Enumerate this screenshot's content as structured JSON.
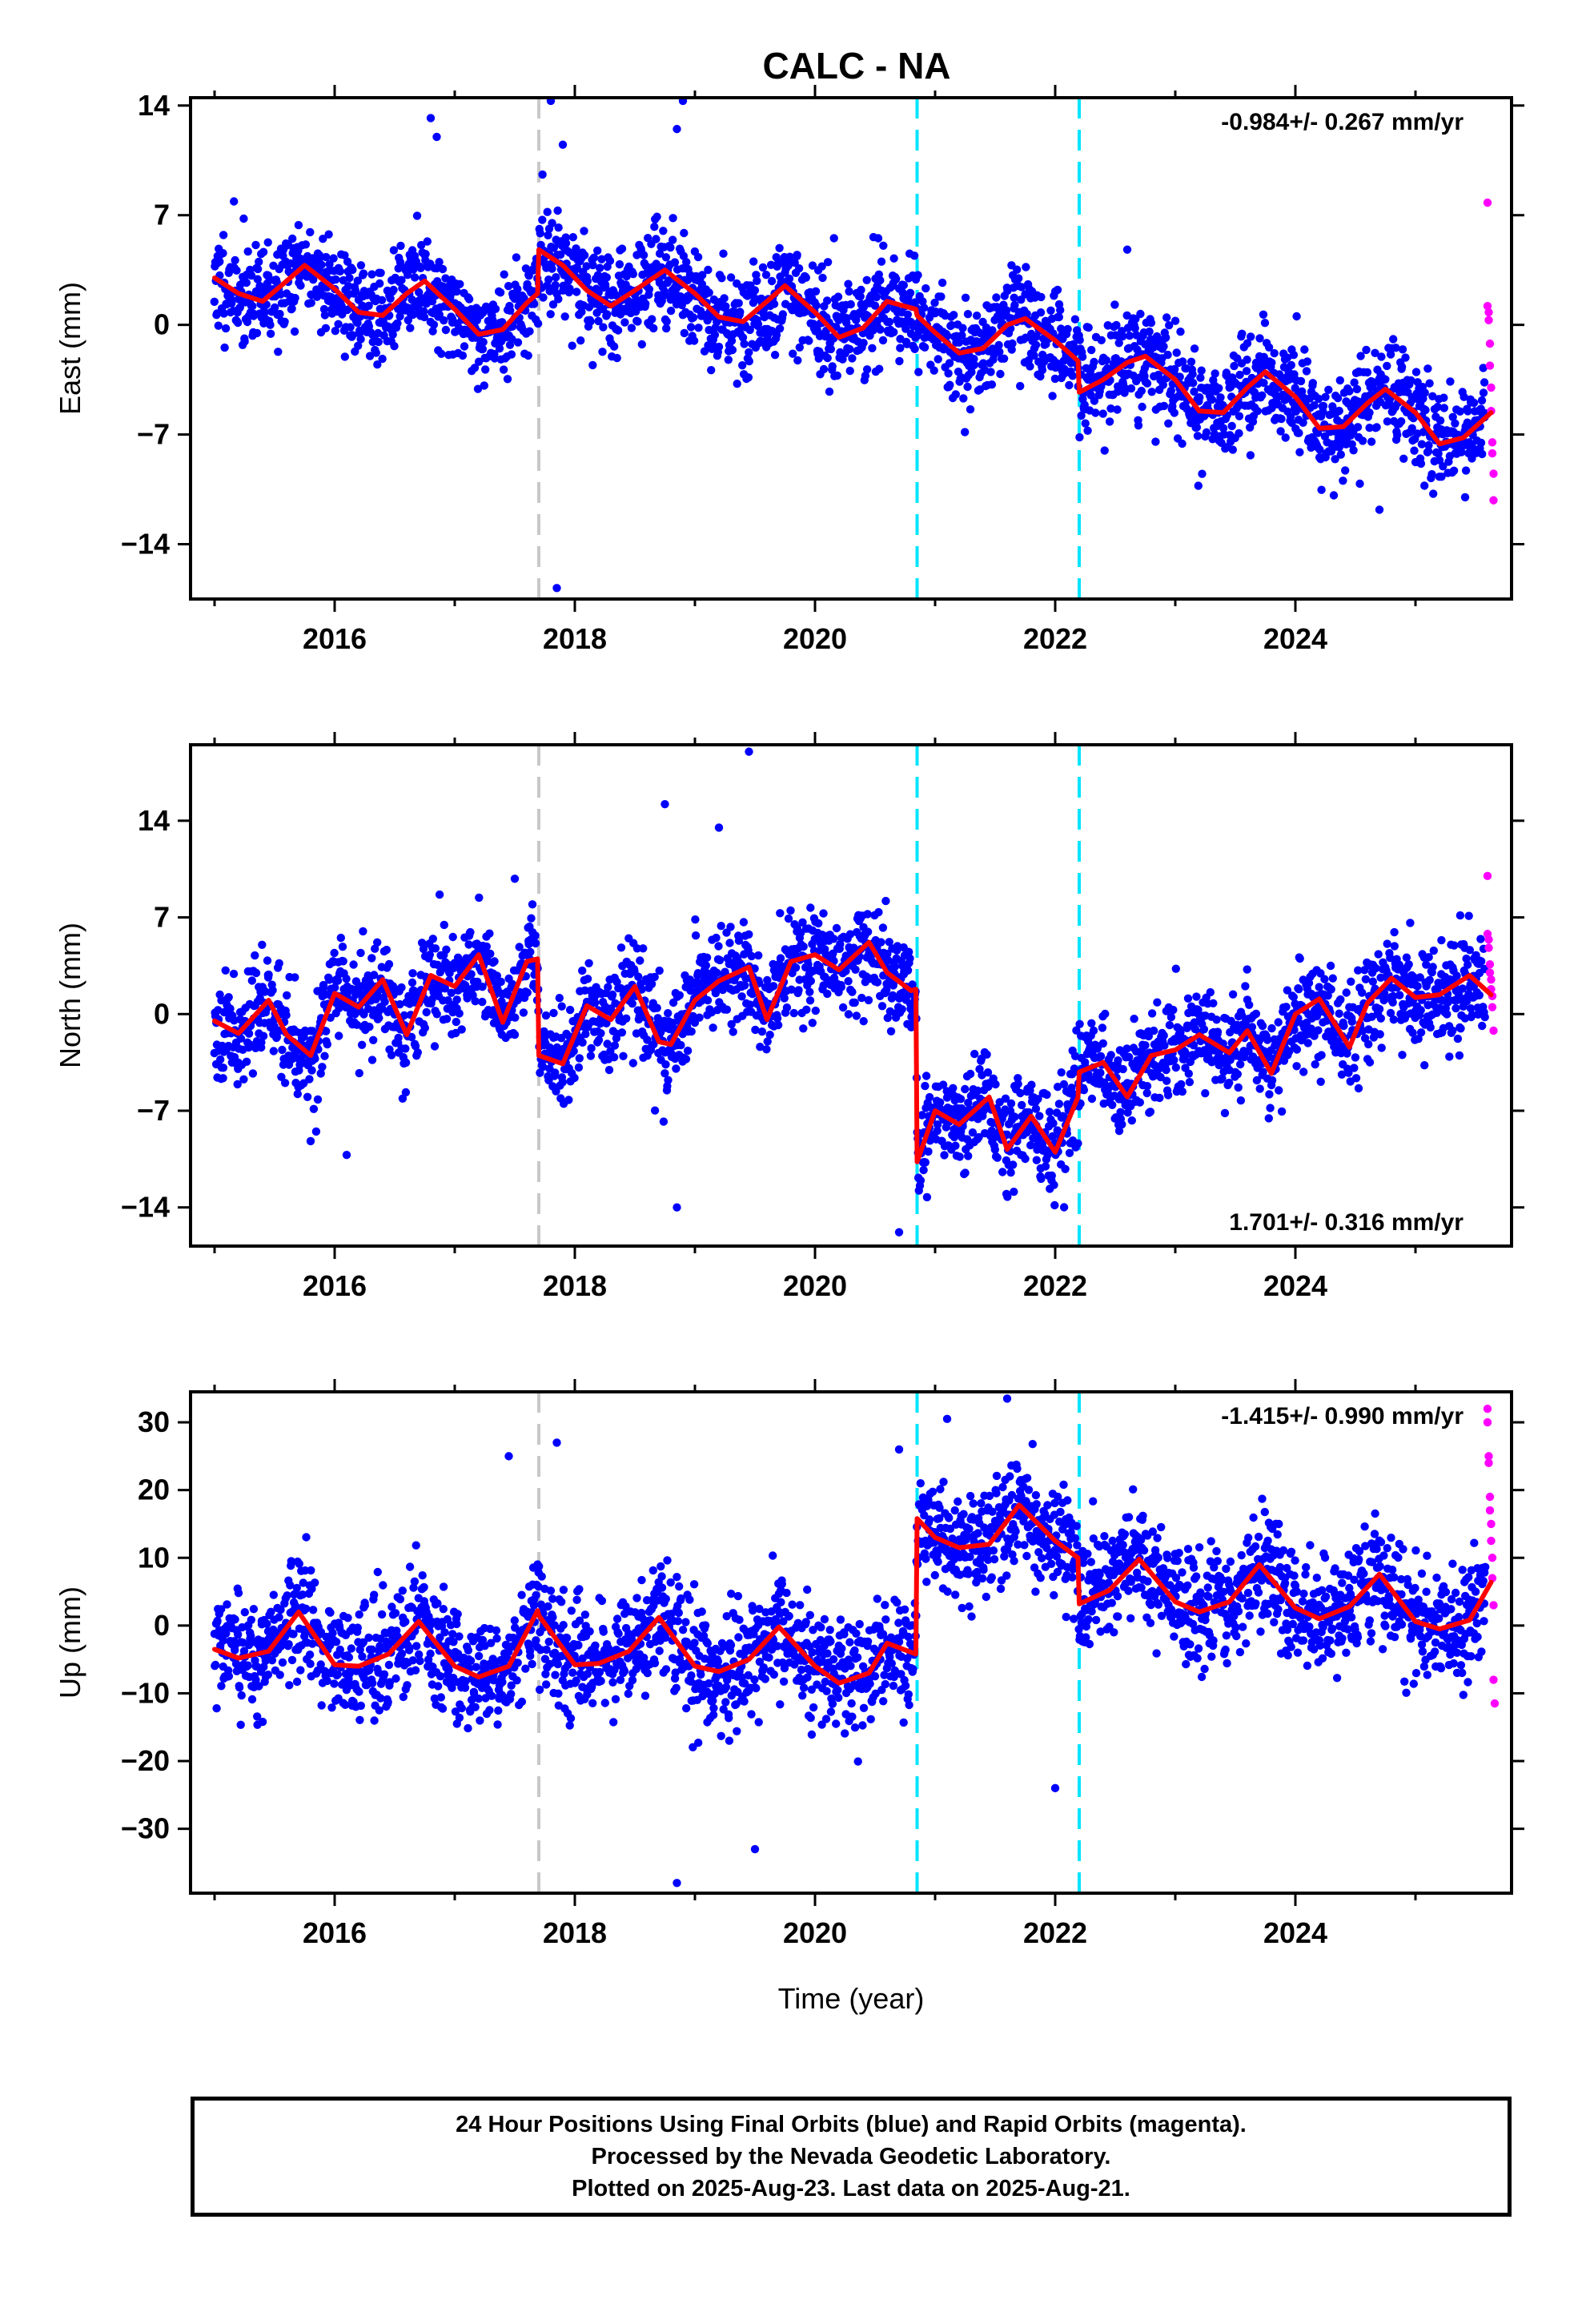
{
  "chart_data": {
    "title": "CALC - NA",
    "type": "scatter",
    "xlabel": "Time (year)",
    "xlim": [
      2014.8,
      2025.8
    ],
    "xticks": [
      2016,
      2018,
      2020,
      2022,
      2024
    ],
    "colors": {
      "final": "#0000ff",
      "rapid": "#ff00ff",
      "model": "#ff0000",
      "step_equipment": "#c8c8c8",
      "step_other": "#00e5ff"
    },
    "vertical_lines": [
      {
        "x": 2017.7,
        "color": "gray"
      },
      {
        "x": 2020.85,
        "color": "cyan"
      },
      {
        "x": 2022.2,
        "color": "cyan"
      }
    ],
    "panels": [
      {
        "ylabel": "East (mm)",
        "ylim": [
          -17.5,
          14.5
        ],
        "yticks": [
          14,
          7,
          0,
          -7,
          -14
        ],
        "rate": "-0.984+/- 0.267 mm/yr",
        "rate_position": "top-right",
        "model": {
          "type": "line",
          "x": [
            2015.0,
            2015.2,
            2015.4,
            2015.6,
            2015.75,
            2016.0,
            2016.2,
            2016.4,
            2016.6,
            2016.75,
            2017.0,
            2017.2,
            2017.4,
            2017.6,
            2017.69,
            2017.7,
            2017.9,
            2018.1,
            2018.3,
            2018.5,
            2018.75,
            2019.0,
            2019.2,
            2019.4,
            2019.6,
            2019.75,
            2020.0,
            2020.2,
            2020.4,
            2020.6,
            2020.84,
            2020.85,
            2021.0,
            2021.2,
            2021.4,
            2021.6,
            2021.75,
            2022.0,
            2022.19,
            2022.2,
            2022.4,
            2022.6,
            2022.75,
            2023.0,
            2023.2,
            2023.4,
            2023.6,
            2023.75,
            2024.0,
            2024.2,
            2024.4,
            2024.6,
            2024.75,
            2025.0,
            2025.2,
            2025.4,
            2025.63
          ],
          "y": [
            3.0,
            2.0,
            1.5,
            2.8,
            3.8,
            2.3,
            0.8,
            0.6,
            2.0,
            2.8,
            1.0,
            -0.6,
            -0.3,
            1.4,
            2.0,
            4.8,
            3.8,
            2.2,
            1.2,
            2.2,
            3.5,
            2.0,
            0.5,
            0.2,
            1.5,
            2.5,
            0.8,
            -0.8,
            -0.2,
            1.5,
            1.0,
            0.6,
            -0.5,
            -1.8,
            -1.5,
            0.0,
            0.4,
            -1.0,
            -2.3,
            -4.3,
            -3.5,
            -2.4,
            -2.0,
            -3.5,
            -5.5,
            -5.6,
            -4.0,
            -3.0,
            -4.6,
            -6.6,
            -6.5,
            -5.0,
            -4.1,
            -5.6,
            -7.6,
            -7.2,
            -5.6
          ]
        },
        "final_points": {
          "seed": 11,
          "count": 2600,
          "x_range": [
            2015.0,
            2025.58
          ],
          "noise": 1.6,
          "outliers": [
            [
              2016.8,
              13.2
            ],
            [
              2016.85,
              12.0
            ],
            [
              2017.8,
              14.3
            ],
            [
              2017.9,
              11.5
            ],
            [
              2018.9,
              14.3
            ],
            [
              2018.85,
              12.5
            ],
            [
              2017.85,
              -16.8
            ],
            [
              2022.6,
              4.8
            ],
            [
              2024.7,
              -11.8
            ]
          ]
        },
        "rapid_points": {
          "x": [
            2025.6,
            2025.6,
            2025.61,
            2025.61,
            2025.62,
            2025.62,
            2025.63,
            2025.63,
            2025.64,
            2025.64,
            2025.65,
            2025.65
          ],
          "y": [
            7.8,
            1.2,
            0.8,
            0.3,
            -1.2,
            -2.6,
            -4.0,
            -5.5,
            -7.5,
            -8.2,
            -9.5,
            -11.2
          ]
        }
      },
      {
        "ylabel": "North (mm)",
        "ylim": [
          -16.8,
          19.5
        ],
        "yticks": [
          14,
          7,
          0,
          -7,
          -14
        ],
        "rate": "1.701+/- 0.316 mm/yr",
        "rate_position": "bottom-right",
        "model": {
          "type": "line",
          "x": [
            2015.0,
            2015.2,
            2015.45,
            2015.6,
            2015.8,
            2016.0,
            2016.2,
            2016.4,
            2016.6,
            2016.8,
            2017.0,
            2017.2,
            2017.4,
            2017.6,
            2017.69,
            2017.7,
            2017.9,
            2018.1,
            2018.3,
            2018.5,
            2018.7,
            2018.8,
            2019.0,
            2019.2,
            2019.45,
            2019.6,
            2019.8,
            2020.0,
            2020.2,
            2020.45,
            2020.6,
            2020.8,
            2020.84,
            2020.85,
            2021.0,
            2021.2,
            2021.45,
            2021.6,
            2021.8,
            2022.0,
            2022.19,
            2022.2,
            2022.4,
            2022.6,
            2022.8,
            2023.0,
            2023.2,
            2023.45,
            2023.6,
            2023.8,
            2024.0,
            2024.2,
            2024.45,
            2024.6,
            2024.8,
            2025.0,
            2025.2,
            2025.45,
            2025.63
          ],
          "y": [
            -0.5,
            -1.4,
            1.0,
            -1.5,
            -3.0,
            1.5,
            0.5,
            2.5,
            -1.5,
            2.8,
            2.0,
            4.3,
            -0.6,
            3.8,
            4.0,
            -3.0,
            -3.6,
            0.6,
            -0.4,
            2.0,
            -2.0,
            -2.2,
            1.0,
            2.4,
            3.4,
            -0.4,
            3.8,
            4.3,
            3.2,
            5.2,
            3.0,
            1.7,
            1.8,
            -10.7,
            -7.0,
            -8.0,
            -6.0,
            -9.8,
            -7.4,
            -10.0,
            -6.0,
            -4.2,
            -3.5,
            -6.0,
            -3.0,
            -2.6,
            -1.5,
            -2.8,
            -1.2,
            -4.3,
            0.0,
            1.1,
            -2.4,
            0.8,
            2.6,
            1.2,
            1.4,
            2.8,
            1.4
          ]
        },
        "final_points": {
          "seed": 23,
          "count": 2600,
          "x_range": [
            2015.0,
            2025.58
          ],
          "noise": 1.8,
          "outliers": [
            [
              2019.45,
              19.0
            ],
            [
              2018.75,
              15.2
            ],
            [
              2019.2,
              13.5
            ],
            [
              2017.5,
              9.8
            ],
            [
              2018.85,
              -14.0
            ],
            [
              2020.7,
              -15.8
            ],
            [
              2016.1,
              -10.2
            ],
            [
              2015.8,
              -9.2
            ]
          ]
        },
        "rapid_points": {
          "x": [
            2025.6,
            2025.6,
            2025.61,
            2025.61,
            2025.62,
            2025.62,
            2025.63,
            2025.63,
            2025.64,
            2025.64,
            2025.65
          ],
          "y": [
            10.0,
            5.8,
            5.4,
            4.8,
            3.6,
            3.0,
            2.5,
            1.8,
            1.3,
            0.5,
            -1.2
          ]
        }
      },
      {
        "ylabel": "Up (mm)",
        "ylim": [
          -39.5,
          34.5
        ],
        "yticks": [
          30,
          20,
          10,
          0,
          -10,
          -20,
          -30
        ],
        "rate": "-1.415+/- 0.990 mm/yr",
        "rate_position": "top-right",
        "model": {
          "type": "line",
          "x": [
            2015.0,
            2015.2,
            2015.45,
            2015.7,
            2016.0,
            2016.2,
            2016.45,
            2016.7,
            2017.0,
            2017.2,
            2017.45,
            2017.69,
            2017.7,
            2018.0,
            2018.2,
            2018.45,
            2018.7,
            2019.0,
            2019.2,
            2019.45,
            2019.7,
            2020.0,
            2020.2,
            2020.45,
            2020.6,
            2020.84,
            2020.85,
            2021.0,
            2021.2,
            2021.45,
            2021.7,
            2022.0,
            2022.19,
            2022.2,
            2022.45,
            2022.7,
            2023.0,
            2023.2,
            2023.45,
            2023.7,
            2024.0,
            2024.2,
            2024.45,
            2024.7,
            2025.0,
            2025.2,
            2025.45,
            2025.63
          ],
          "y": [
            -3.5,
            -4.8,
            -3.8,
            2.0,
            -5.8,
            -6.0,
            -4.2,
            0.6,
            -6.0,
            -7.6,
            -6.0,
            2.2,
            1.5,
            -5.8,
            -5.6,
            -3.8,
            1.2,
            -6.0,
            -6.8,
            -5.0,
            -0.2,
            -6.0,
            -8.5,
            -7.0,
            -2.6,
            -4.2,
            15.8,
            13.0,
            11.5,
            12.0,
            17.8,
            12.5,
            10.0,
            3.2,
            5.2,
            9.8,
            3.5,
            2.0,
            3.5,
            9.0,
            2.6,
            1.0,
            2.8,
            7.6,
            0.6,
            -0.5,
            0.8,
            6.4
          ]
        },
        "final_points": {
          "seed": 37,
          "count": 2600,
          "x_range": [
            2015.0,
            2025.58
          ],
          "noise": 4.2,
          "outliers": [
            [
              2021.6,
              33.5
            ],
            [
              2021.1,
              30.5
            ],
            [
              2017.85,
              27.0
            ],
            [
              2018.85,
              -38.0
            ],
            [
              2019.5,
              -33.0
            ],
            [
              2022.0,
              -24.0
            ],
            [
              2017.45,
              25.0
            ],
            [
              2020.7,
              26.0
            ]
          ]
        },
        "rapid_points": {
          "x": [
            2025.6,
            2025.6,
            2025.61,
            2025.61,
            2025.62,
            2025.62,
            2025.63,
            2025.63,
            2025.64,
            2025.64,
            2025.65,
            2025.65,
            2025.66
          ],
          "y": [
            32.0,
            30.0,
            25.0,
            24.0,
            19.0,
            17.0,
            15.0,
            12.5,
            10.0,
            7.0,
            3.0,
            -8.0,
            -11.5
          ]
        }
      }
    ]
  },
  "footer": {
    "line1": "24 Hour Positions Using Final Orbits (blue) and Rapid Orbits (magenta).",
    "line2": "Processed by the Nevada Geodetic Laboratory.",
    "line3": "Plotted on 2025-Aug-23. Last data on 2025-Aug-21."
  }
}
